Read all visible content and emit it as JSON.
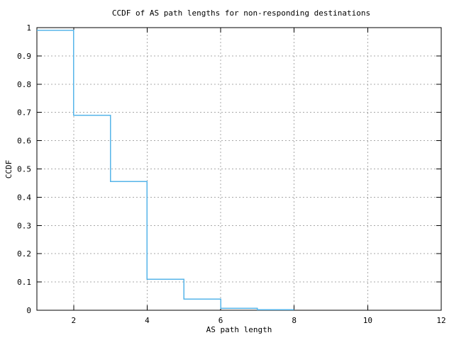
{
  "chart_data": {
    "type": "line",
    "style": "step-after",
    "title": "CCDF of AS path lengths for non-responding destinations",
    "xlabel": "AS path length",
    "ylabel": "CCDF",
    "xlim": [
      1,
      12
    ],
    "ylim": [
      0,
      1
    ],
    "grid": true,
    "legend": "none",
    "x_ticks": [
      {
        "value": 2,
        "label": "2"
      },
      {
        "value": 4,
        "label": "4"
      },
      {
        "value": 6,
        "label": "6"
      },
      {
        "value": 8,
        "label": "8"
      },
      {
        "value": 10,
        "label": "10"
      },
      {
        "value": 12,
        "label": "12"
      }
    ],
    "y_ticks": [
      {
        "value": 0,
        "label": "0"
      },
      {
        "value": 0.1,
        "label": "0.1"
      },
      {
        "value": 0.2,
        "label": "0.2"
      },
      {
        "value": 0.3,
        "label": "0.3"
      },
      {
        "value": 0.4,
        "label": "0.4"
      },
      {
        "value": 0.5,
        "label": "0.5"
      },
      {
        "value": 0.6,
        "label": "0.6"
      },
      {
        "value": 0.7,
        "label": "0.7"
      },
      {
        "value": 0.8,
        "label": "0.8"
      },
      {
        "value": 0.9,
        "label": "0.9"
      },
      {
        "value": 1,
        "label": "1"
      }
    ],
    "steps": [
      {
        "x_start": 1,
        "x_end": 2,
        "y": 0.99
      },
      {
        "x_start": 2,
        "x_end": 3,
        "y": 0.69
      },
      {
        "x_start": 3,
        "x_end": 4,
        "y": 0.455
      },
      {
        "x_start": 4,
        "x_end": 5,
        "y": 0.11
      },
      {
        "x_start": 5,
        "x_end": 6,
        "y": 0.04
      },
      {
        "x_start": 6,
        "x_end": 7,
        "y": 0.007
      },
      {
        "x_start": 7,
        "x_end": 8,
        "y": 0.002
      }
    ],
    "colors": {
      "line": "#56b4e9",
      "grid": "#a8a8a8",
      "axis": "#000000",
      "background": "#ffffff"
    }
  }
}
